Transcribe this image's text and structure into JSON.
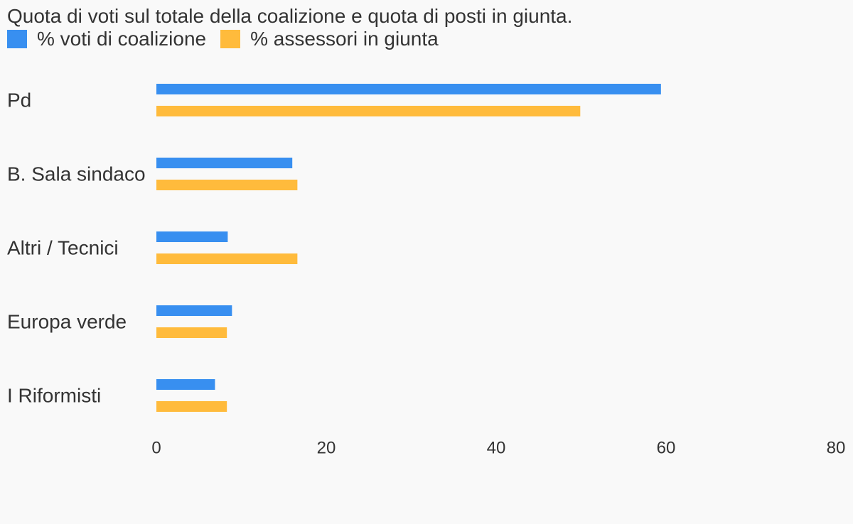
{
  "chart_data": {
    "type": "bar",
    "orientation": "horizontal",
    "title": "Quota di voti sul totale della coalizione e quota di posti in giunta.",
    "categories": [
      "Pd",
      "B. Sala sindaco",
      "Altri / Tecnici",
      "Europa verde",
      "I Riformisti"
    ],
    "series": [
      {
        "name": "% voti di coalizione",
        "color": "#388ff0",
        "values": [
          59.4,
          16.0,
          8.4,
          8.9,
          6.9
        ]
      },
      {
        "name": "% assessori in giunta",
        "color": "#ffbb3c",
        "values": [
          49.9,
          16.6,
          16.6,
          8.3,
          8.3
        ]
      }
    ],
    "xlim": [
      0,
      80
    ],
    "xticks": [
      "0",
      "20",
      "40",
      "60",
      "80"
    ],
    "xlabel": "",
    "ylabel": "",
    "grid": false,
    "legend_position": "top-left"
  }
}
